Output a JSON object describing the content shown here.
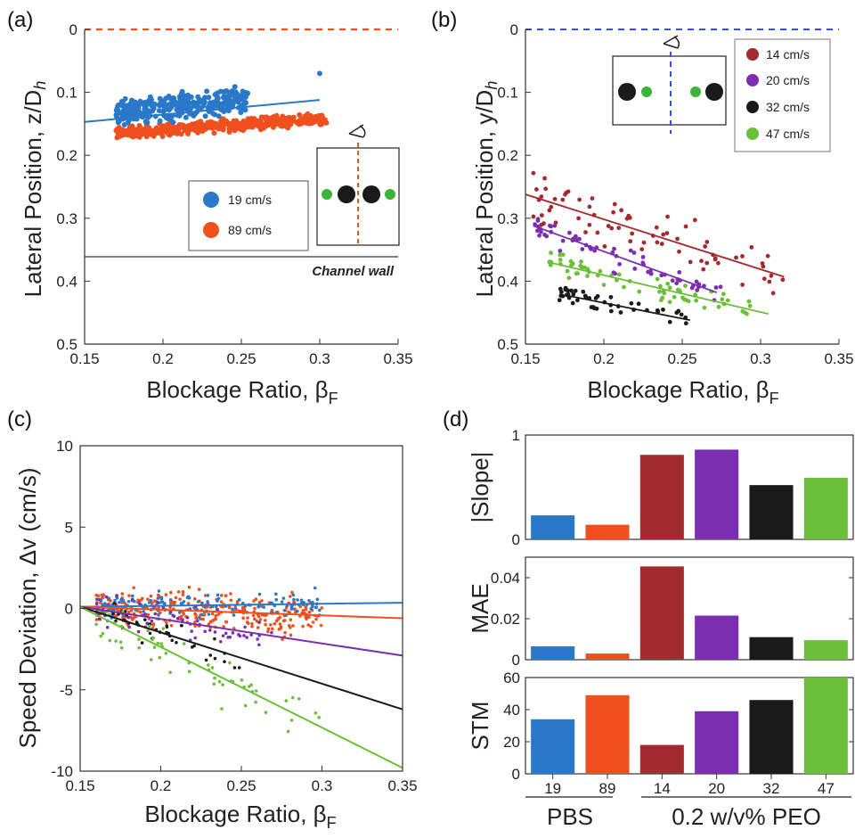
{
  "colors": {
    "c19": "#2a78c8",
    "c89": "#f0501e",
    "c14": "#a32a2e",
    "c20": "#7b2fb0",
    "c32": "#1a1a1a",
    "c47": "#6cbf3a",
    "green_dot": "#3ab53a",
    "dash_a": "#f0501e",
    "dash_b": "#3a4fd0"
  },
  "chart_data": [
    {
      "panel": "(a)",
      "type": "scatter",
      "xlabel": "Blockage Ratio, β",
      "xlabel_sub": "F",
      "ylabel": "Lateral Position, z/D",
      "ylabel_sub": "h",
      "xlim": [
        0.15,
        0.35
      ],
      "ylim": [
        0,
        0.5
      ],
      "y_inverted": true,
      "xticks": [
        "0.15",
        "0.2",
        "0.25",
        "0.3",
        "0.35"
      ],
      "yticks": [
        "0",
        "0.1",
        "0.2",
        "0.3",
        "0.4",
        "0.5"
      ],
      "reference_line_y": 0,
      "wall_line_y": 0.36,
      "wall_label": "Channel wall",
      "legend": [
        {
          "label": "19 cm/s",
          "color": "#2a78c8"
        },
        {
          "label": "89 cm/s",
          "color": "#f0501e"
        }
      ],
      "series": [
        {
          "name": "19 cm/s",
          "color": "#2a78c8",
          "x_range": [
            0.17,
            0.255
          ],
          "y_center": 0.13,
          "y_spread": 0.03,
          "fit": [
            [
              0.15,
              0.147
            ],
            [
              0.3,
              0.112
            ]
          ],
          "outlier": [
            0.3,
            0.07
          ]
        },
        {
          "name": "89 cm/s",
          "color": "#f0501e",
          "x_range": [
            0.17,
            0.305
          ],
          "y_center": 0.155,
          "y_spread": 0.013,
          "fit": [
            [
              0.17,
              0.165
            ],
            [
              0.305,
              0.142
            ]
          ]
        }
      ]
    },
    {
      "panel": "(b)",
      "type": "scatter",
      "xlabel": "Blockage Ratio, β",
      "xlabel_sub": "F",
      "ylabel": "Lateral Position, y/D",
      "ylabel_sub": "h",
      "xlim": [
        0.15,
        0.35
      ],
      "ylim": [
        0,
        0.5
      ],
      "y_inverted": true,
      "xticks": [
        "0.15",
        "0.2",
        "0.25",
        "0.3",
        "0.35"
      ],
      "yticks": [
        "0",
        "0.1",
        "0.2",
        "0.3",
        "0.4",
        "0.5"
      ],
      "reference_line_y": 0,
      "legend": [
        {
          "label": "14 cm/s",
          "color": "#a32a2e"
        },
        {
          "label": "20 cm/s",
          "color": "#7b2fb0"
        },
        {
          "label": "32 cm/s",
          "color": "#1a1a1a"
        },
        {
          "label": "47 cm/s",
          "color": "#6cbf3a"
        }
      ],
      "series": [
        {
          "name": "14 cm/s",
          "color": "#a32a2e",
          "x_range": [
            0.155,
            0.315
          ],
          "y_center": 0.28,
          "y_spread": 0.06,
          "fit": [
            [
              0.15,
              0.262
            ],
            [
              0.315,
              0.393
            ]
          ]
        },
        {
          "name": "20 cm/s",
          "color": "#7b2fb0",
          "x_range": [
            0.155,
            0.275
          ],
          "y_center": 0.34,
          "y_spread": 0.03,
          "fit": [
            [
              0.155,
              0.312
            ],
            [
              0.272,
              0.418
            ]
          ]
        },
        {
          "name": "32 cm/s",
          "color": "#1a1a1a",
          "x_range": [
            0.17,
            0.255
          ],
          "y_center": 0.45,
          "y_spread": 0.02,
          "fit": [
            [
              0.175,
              0.422
            ],
            [
              0.255,
              0.462
            ]
          ]
        },
        {
          "name": "47 cm/s",
          "color": "#6cbf3a",
          "x_range": [
            0.165,
            0.305
          ],
          "y_center": 0.405,
          "y_spread": 0.022,
          "fit": [
            [
              0.165,
              0.37
            ],
            [
              0.305,
              0.452
            ]
          ]
        }
      ]
    },
    {
      "panel": "(c)",
      "type": "scatter",
      "xlabel": "Blockage Ratio, β",
      "xlabel_sub": "F",
      "ylabel": "Speed Deviation, Δv (cm/s)",
      "xlim": [
        0.15,
        0.35
      ],
      "ylim": [
        -10,
        10
      ],
      "xticks": [
        "0.15",
        "0.2",
        "0.25",
        "0.3",
        "0.35"
      ],
      "yticks": [
        "-10",
        "-5",
        "0",
        "5",
        "10"
      ],
      "series": [
        {
          "name": "19 cm/s",
          "color": "#2a78c8",
          "fit": [
            [
              0.15,
              0.1
            ],
            [
              0.35,
              0.35
            ]
          ]
        },
        {
          "name": "89 cm/s",
          "color": "#f0501e",
          "fit": [
            [
              0.15,
              0.1
            ],
            [
              0.35,
              -0.6
            ]
          ]
        },
        {
          "name": "20 cm/s",
          "color": "#7b2fb0",
          "fit": [
            [
              0.15,
              0.1
            ],
            [
              0.35,
              -2.9
            ]
          ]
        },
        {
          "name": "32 cm/s",
          "color": "#1a1a1a",
          "fit": [
            [
              0.15,
              0.1
            ],
            [
              0.35,
              -6.2
            ]
          ]
        },
        {
          "name": "47 cm/s",
          "color": "#6cbf3a",
          "fit": [
            [
              0.15,
              0.1
            ],
            [
              0.35,
              -9.8
            ]
          ]
        }
      ]
    },
    {
      "panel": "(d)",
      "type": "bar",
      "categories": [
        "19",
        "89",
        "14",
        "20",
        "32",
        "47"
      ],
      "group_labels": [
        {
          "label": "PBS",
          "members": [
            "19",
            "89"
          ]
        },
        {
          "label": "0.2 w/v% PEO",
          "members": [
            "14",
            "20",
            "32",
            "47"
          ]
        }
      ],
      "bar_colors": [
        "#2a78c8",
        "#f0501e",
        "#a32a2e",
        "#7b2fb0",
        "#1a1a1a",
        "#6cbf3a"
      ],
      "subplots": [
        {
          "ylabel": "|Slope|",
          "ylim": [
            0,
            1
          ],
          "yticks": [
            "0",
            "1"
          ],
          "values": [
            0.23,
            0.14,
            0.81,
            0.86,
            0.52,
            0.59
          ]
        },
        {
          "ylabel": "MAE",
          "ylim": [
            0,
            0.05
          ],
          "yticks": [
            "0",
            "0.02",
            "0.04"
          ],
          "values": [
            0.0065,
            0.003,
            0.0455,
            0.0215,
            0.011,
            0.0095
          ]
        },
        {
          "ylabel": "STM",
          "ylim": [
            0,
            60
          ],
          "yticks": [
            "0",
            "20",
            "40",
            "60"
          ],
          "values": [
            34,
            49,
            18,
            39,
            46,
            60
          ]
        }
      ]
    }
  ]
}
